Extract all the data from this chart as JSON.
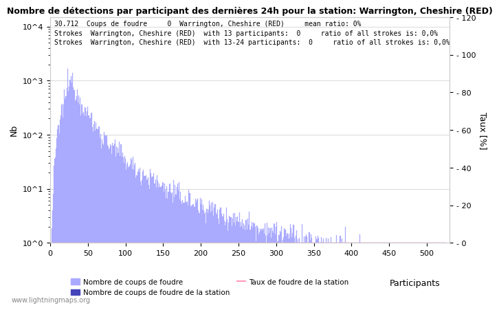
{
  "title": "Nombre de détections par participant des dernières 24h pour la station: Warrington, Cheshire (RED)",
  "annotation_line1": "30.712  Coups de foudre     0  Warrington, Cheshire (RED)     mean ratio: 0%",
  "annotation_line2": "Strokes  Warrington, Cheshire (RED)  with 13 participants:  0     ratio of all strokes is: 0,0%",
  "annotation_line3": "Strokes  Warrington, Cheshire (RED)  with 13-24 participants:  0     ratio of all strokes is: 0,0%",
  "xlabel": "Participants",
  "ylabel_left": "Nb",
  "ylabel_right": "Taux [%]",
  "bar_color": "#aaaaff",
  "station_bar_color": "#4444bb",
  "rate_line_color": "#ff99bb",
  "watermark": "www.lightningmaps.org",
  "legend_labels": [
    "Nombre de coups de foudre",
    "Nombre de coups de foudre de la station",
    "Taux de foudre de la station"
  ],
  "x_ticks": [
    0,
    50,
    100,
    150,
    200,
    250,
    300,
    350,
    400,
    450,
    500
  ],
  "y_right_ticks": [
    0,
    20,
    40,
    60,
    80,
    100,
    120
  ],
  "num_participants": 525,
  "peak_participant": 28,
  "peak_value": 1200
}
